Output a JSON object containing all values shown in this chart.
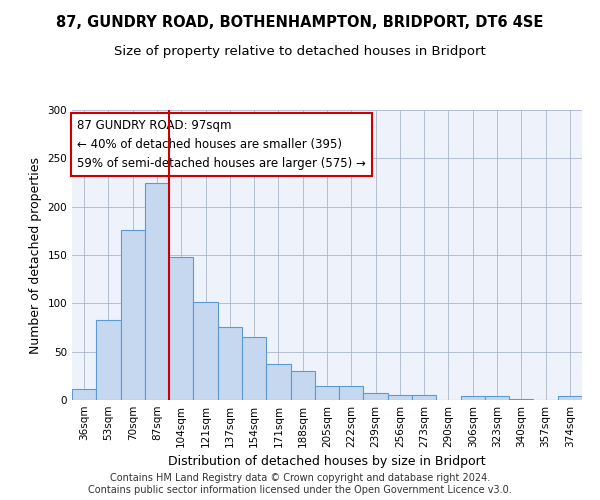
{
  "title1": "87, GUNDRY ROAD, BOTHENHAMPTON, BRIDPORT, DT6 4SE",
  "title2": "Size of property relative to detached houses in Bridport",
  "xlabel": "Distribution of detached houses by size in Bridport",
  "ylabel": "Number of detached properties",
  "categories": [
    "36sqm",
    "53sqm",
    "70sqm",
    "87sqm",
    "104sqm",
    "121sqm",
    "137sqm",
    "154sqm",
    "171sqm",
    "188sqm",
    "205sqm",
    "222sqm",
    "239sqm",
    "256sqm",
    "273sqm",
    "290sqm",
    "306sqm",
    "323sqm",
    "340sqm",
    "357sqm",
    "374sqm"
  ],
  "values": [
    11,
    83,
    176,
    224,
    148,
    101,
    76,
    65,
    37,
    30,
    15,
    15,
    7,
    5,
    5,
    0,
    4,
    4,
    1,
    0,
    4
  ],
  "bar_color": "#c5d8f0",
  "bar_edge_color": "#5b9bd5",
  "vline_x": 3.5,
  "vline_color": "#cc0000",
  "annotation_line1": "87 GUNDRY ROAD: 97sqm",
  "annotation_line2": "← 40% of detached houses are smaller (395)",
  "annotation_line3": "59% of semi-detached houses are larger (575) →",
  "annotation_box_facecolor": "#ffffff",
  "annotation_box_edgecolor": "#cc0000",
  "ylim": [
    0,
    300
  ],
  "yticks": [
    0,
    50,
    100,
    150,
    200,
    250,
    300
  ],
  "grid_color": "#aab8cc",
  "plot_bg_color": "#eef2fb",
  "title1_fontsize": 10.5,
  "title2_fontsize": 9.5,
  "xlabel_fontsize": 9,
  "ylabel_fontsize": 9,
  "tick_fontsize": 7.5,
  "annotation_fontsize": 8.5,
  "footer_fontsize": 7,
  "footer_line1": "Contains HM Land Registry data © Crown copyright and database right 2024.",
  "footer_line2": "Contains public sector information licensed under the Open Government Licence v3.0."
}
